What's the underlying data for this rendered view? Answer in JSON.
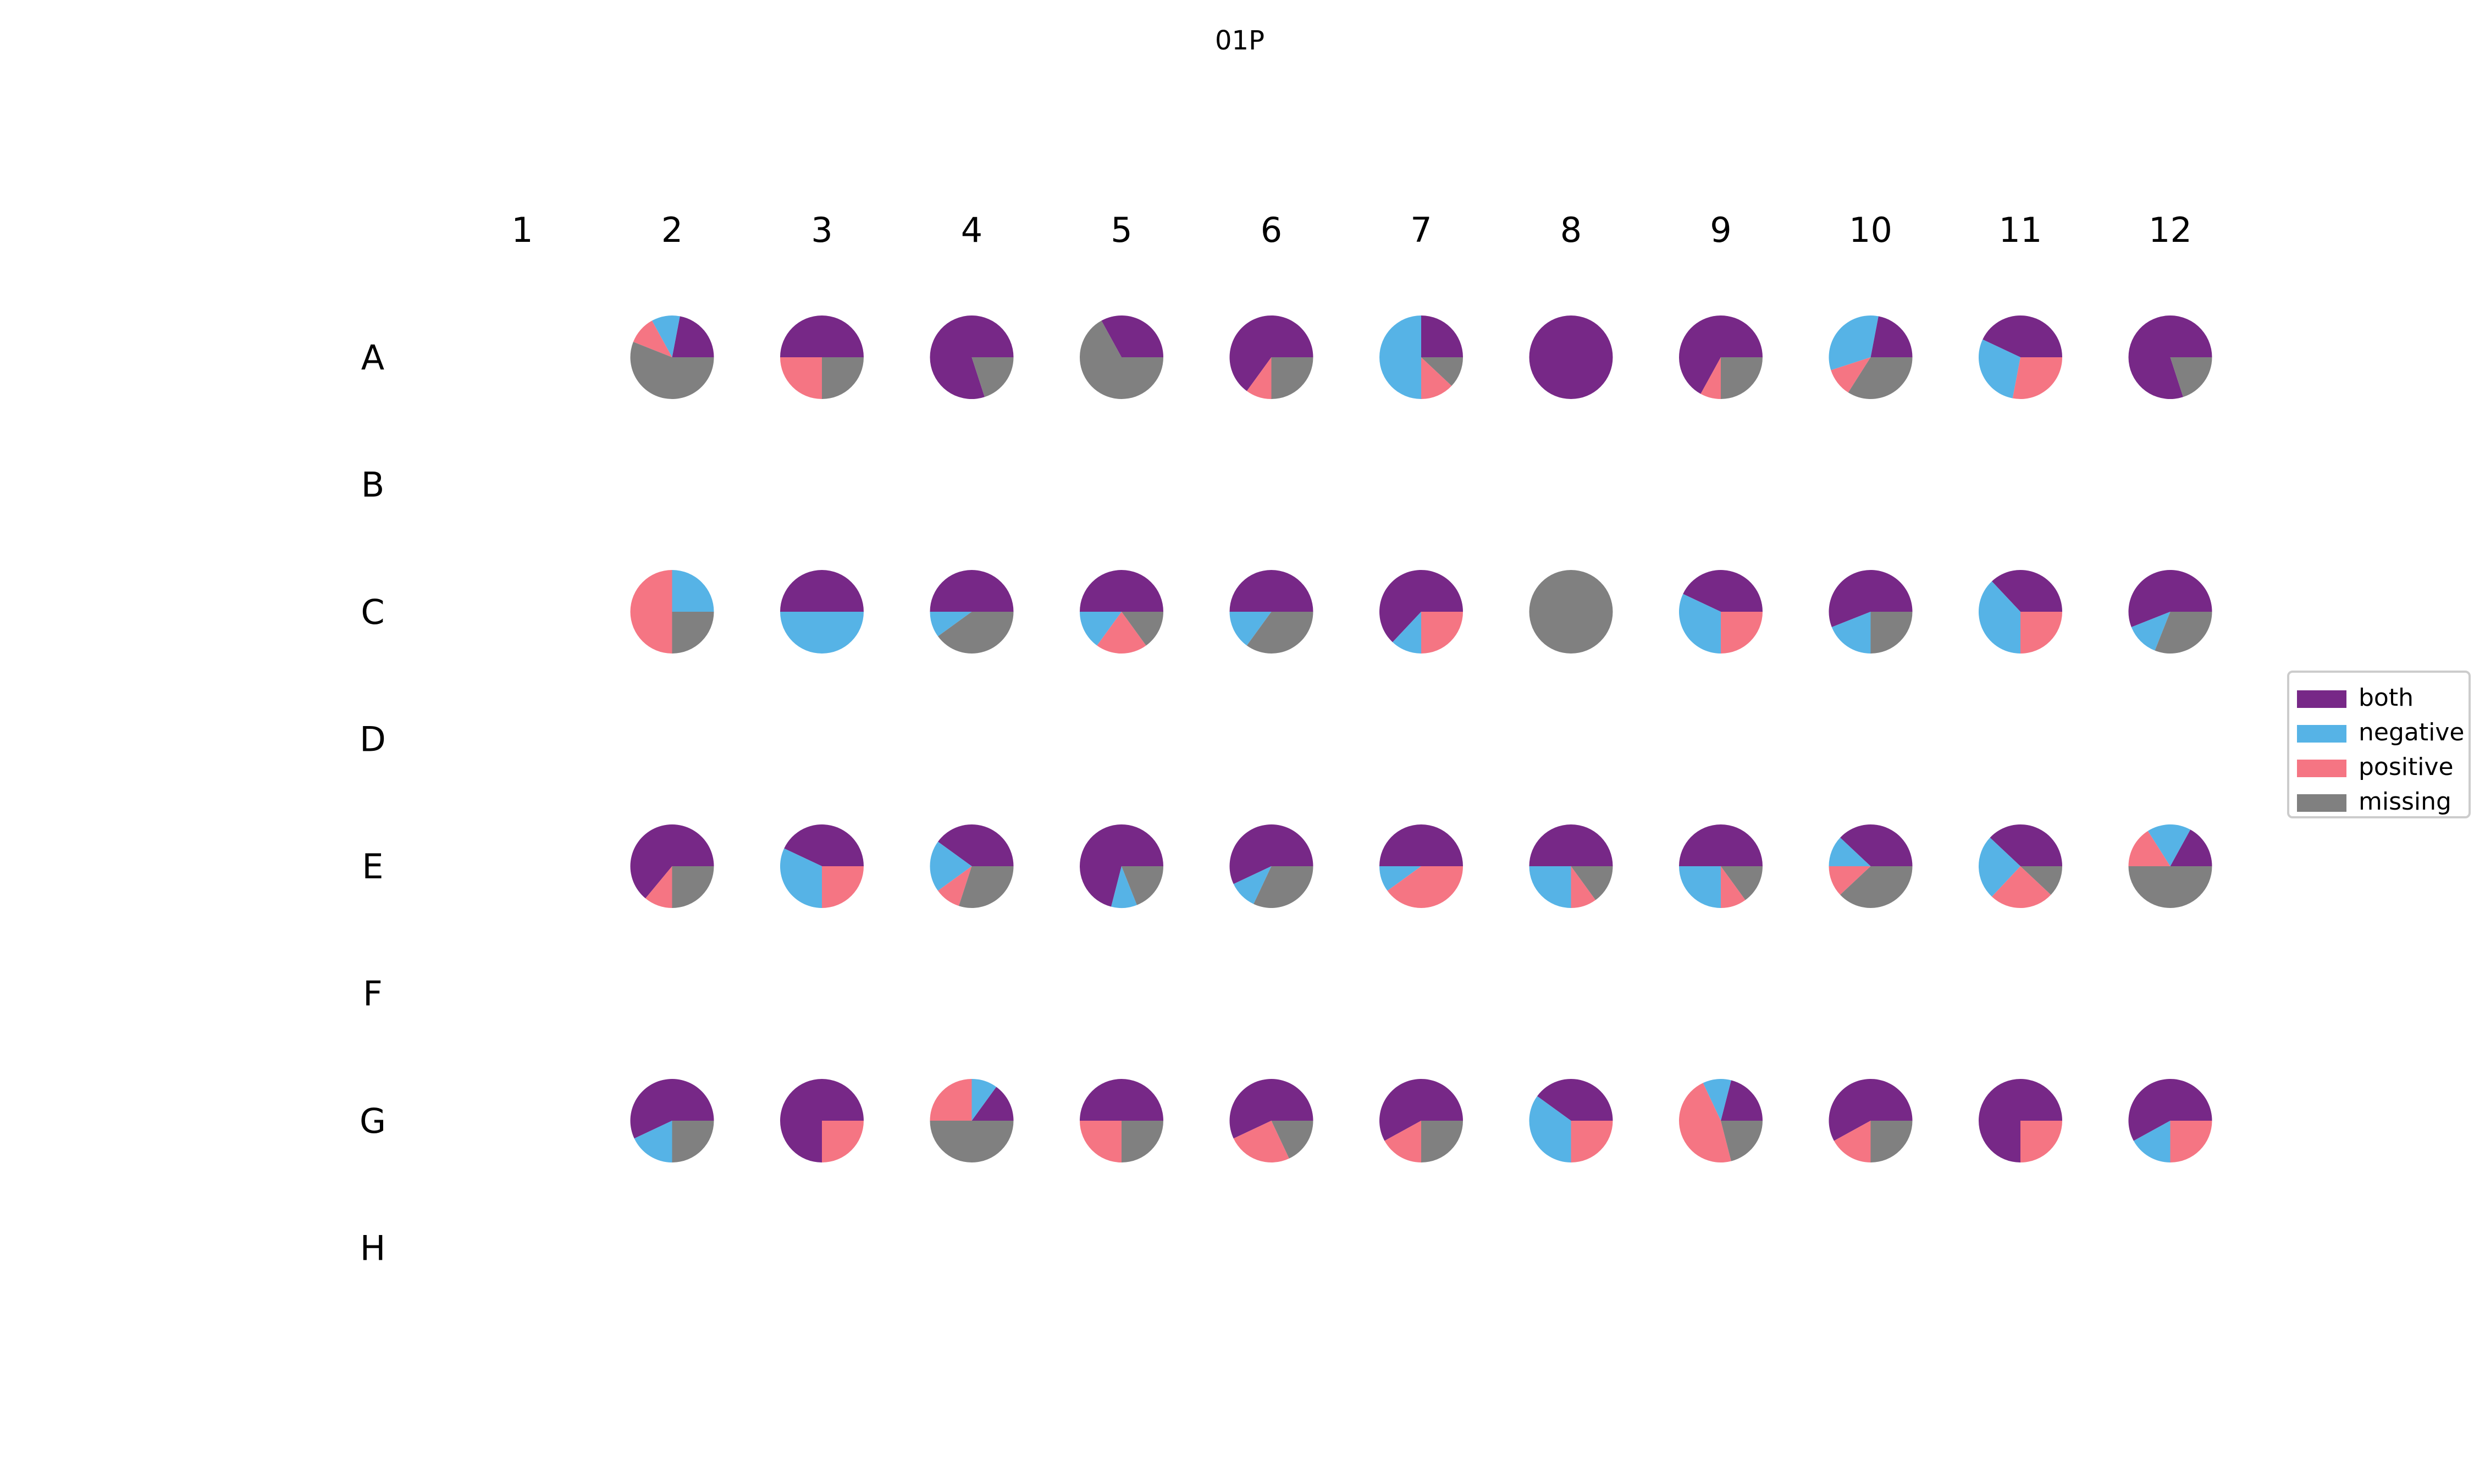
{
  "chart_data": {
    "type": "pie",
    "title": "01P",
    "columns": [
      "1",
      "2",
      "3",
      "4",
      "5",
      "6",
      "7",
      "8",
      "9",
      "10",
      "11",
      "12"
    ],
    "rows": [
      "A",
      "B",
      "C",
      "D",
      "E",
      "F",
      "G",
      "H"
    ],
    "legend": {
      "placement": "center-right",
      "entries": [
        {
          "key": "both",
          "label": "both",
          "color": "#772887"
        },
        {
          "key": "negative",
          "label": "negative",
          "color": "#56b3e6"
        },
        {
          "key": "positive",
          "label": "positive",
          "color": "#f57583"
        },
        {
          "key": "missing",
          "label": "missing",
          "color": "#808080"
        }
      ]
    },
    "wells": [
      {
        "row": "A",
        "col": "2",
        "values": [
          22,
          11,
          11,
          56
        ]
      },
      {
        "row": "A",
        "col": "3",
        "values": [
          50,
          0,
          25,
          25
        ]
      },
      {
        "row": "A",
        "col": "4",
        "values": [
          80,
          0,
          0,
          20
        ]
      },
      {
        "row": "A",
        "col": "5",
        "values": [
          33,
          0,
          0,
          67
        ]
      },
      {
        "row": "A",
        "col": "6",
        "values": [
          65,
          0,
          10,
          25
        ]
      },
      {
        "row": "A",
        "col": "7",
        "values": [
          25,
          50,
          13,
          12
        ]
      },
      {
        "row": "A",
        "col": "8",
        "values": [
          100,
          0,
          0,
          0
        ]
      },
      {
        "row": "A",
        "col": "9",
        "values": [
          67,
          0,
          8,
          25
        ]
      },
      {
        "row": "A",
        "col": "10",
        "values": [
          22,
          33,
          11,
          34
        ]
      },
      {
        "row": "A",
        "col": "11",
        "values": [
          43,
          29,
          28,
          0
        ]
      },
      {
        "row": "A",
        "col": "12",
        "values": [
          80,
          0,
          0,
          20
        ]
      },
      {
        "row": "C",
        "col": "2",
        "values": [
          0,
          25,
          50,
          25
        ]
      },
      {
        "row": "C",
        "col": "3",
        "values": [
          50,
          50,
          0,
          0
        ]
      },
      {
        "row": "C",
        "col": "4",
        "values": [
          50,
          10,
          0,
          40
        ]
      },
      {
        "row": "C",
        "col": "5",
        "values": [
          50,
          15,
          20,
          15
        ]
      },
      {
        "row": "C",
        "col": "6",
        "values": [
          50,
          15,
          0,
          35
        ]
      },
      {
        "row": "C",
        "col": "7",
        "values": [
          63,
          12,
          25,
          0
        ]
      },
      {
        "row": "C",
        "col": "8",
        "values": [
          0,
          0,
          0,
          100
        ]
      },
      {
        "row": "C",
        "col": "9",
        "values": [
          43,
          32,
          25,
          0
        ]
      },
      {
        "row": "C",
        "col": "10",
        "values": [
          56,
          19,
          0,
          25
        ]
      },
      {
        "row": "C",
        "col": "11",
        "values": [
          37,
          38,
          25,
          0
        ]
      },
      {
        "row": "C",
        "col": "12",
        "values": [
          56,
          13,
          0,
          31
        ]
      },
      {
        "row": "E",
        "col": "2",
        "values": [
          64,
          0,
          11,
          25
        ]
      },
      {
        "row": "E",
        "col": "3",
        "values": [
          43,
          32,
          25,
          0
        ]
      },
      {
        "row": "E",
        "col": "4",
        "values": [
          40,
          20,
          10,
          30
        ]
      },
      {
        "row": "E",
        "col": "5",
        "values": [
          71,
          10,
          0,
          19
        ]
      },
      {
        "row": "E",
        "col": "6",
        "values": [
          57,
          11,
          0,
          32
        ]
      },
      {
        "row": "E",
        "col": "7",
        "values": [
          50,
          10,
          40,
          0
        ]
      },
      {
        "row": "E",
        "col": "8",
        "values": [
          50,
          25,
          10,
          15
        ]
      },
      {
        "row": "E",
        "col": "9",
        "values": [
          50,
          25,
          10,
          15
        ]
      },
      {
        "row": "E",
        "col": "10",
        "values": [
          38,
          12,
          12,
          38
        ]
      },
      {
        "row": "E",
        "col": "11",
        "values": [
          38,
          25,
          25,
          12
        ]
      },
      {
        "row": "E",
        "col": "12",
        "values": [
          17,
          17,
          16,
          50
        ]
      },
      {
        "row": "G",
        "col": "2",
        "values": [
          57,
          18,
          0,
          25
        ]
      },
      {
        "row": "G",
        "col": "3",
        "values": [
          75,
          0,
          25,
          0
        ]
      },
      {
        "row": "G",
        "col": "4",
        "values": [
          15,
          10,
          25,
          50
        ]
      },
      {
        "row": "G",
        "col": "5",
        "values": [
          50,
          0,
          25,
          25
        ]
      },
      {
        "row": "G",
        "col": "6",
        "values": [
          57,
          0,
          25,
          18
        ]
      },
      {
        "row": "G",
        "col": "7",
        "values": [
          58,
          0,
          17,
          25
        ]
      },
      {
        "row": "G",
        "col": "8",
        "values": [
          40,
          35,
          25,
          0
        ]
      },
      {
        "row": "G",
        "col": "9",
        "values": [
          21,
          11,
          47,
          21
        ]
      },
      {
        "row": "G",
        "col": "10",
        "values": [
          58,
          0,
          17,
          25
        ]
      },
      {
        "row": "G",
        "col": "11",
        "values": [
          75,
          0,
          25,
          0
        ]
      },
      {
        "row": "G",
        "col": "12",
        "values": [
          58,
          17,
          25,
          0
        ]
      }
    ]
  }
}
